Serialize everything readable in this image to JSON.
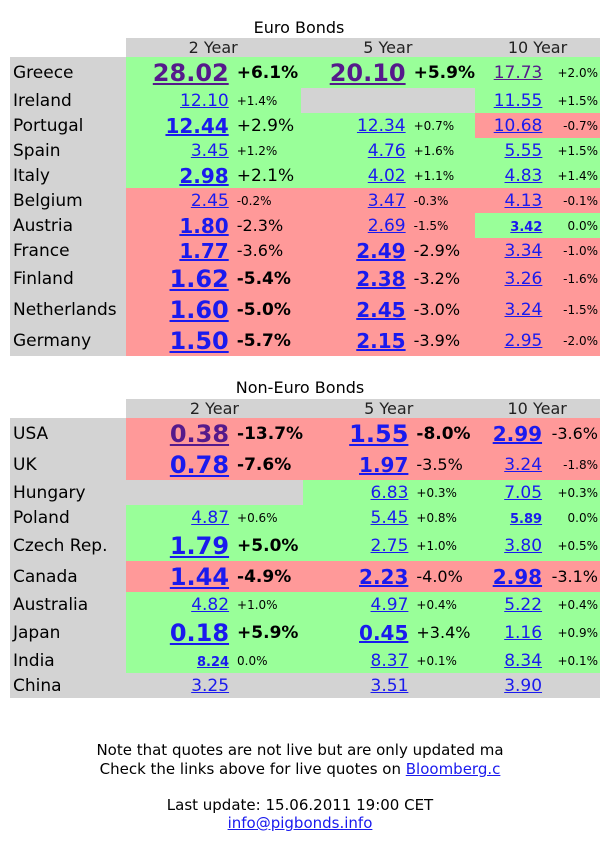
{
  "euro": {
    "title": "Euro Bonds",
    "headers": [
      "2 Year",
      "5 Year",
      "10 Year"
    ],
    "rows": [
      {
        "name": "Greece",
        "h": 31,
        "y2": {
          "v": "28.02",
          "p": "+6.1%",
          "c": "g",
          "vs": "xl",
          "ps": "l",
          "vis": true,
          "pb": true
        },
        "y5": {
          "v": "20.10",
          "p": "+5.9%",
          "c": "g",
          "vs": "xl",
          "ps": "l",
          "vis": true,
          "pb": true
        },
        "y10": {
          "v": "17.73",
          "p": "+2.0%",
          "c": "g",
          "vs": "m",
          "ps": "s",
          "vis": true
        }
      },
      {
        "name": "Ireland",
        "h": 25,
        "y2": {
          "v": "12.10",
          "p": "+1.4%",
          "c": "g",
          "vs": "m",
          "ps": "s"
        },
        "y5": {
          "v": "",
          "p": "",
          "c": "n",
          "vs": "m",
          "ps": "s"
        },
        "y10": {
          "v": "11.55",
          "p": "+1.5%",
          "c": "g",
          "vs": "m",
          "ps": "s"
        }
      },
      {
        "name": "Portugal",
        "h": 25,
        "y2": {
          "v": "12.44",
          "p": "+2.9%",
          "c": "g",
          "vs": "l",
          "ps": "l"
        },
        "y5": {
          "v": "12.34",
          "p": "+0.7%",
          "c": "g",
          "vs": "m",
          "ps": "s"
        },
        "y10": {
          "v": "10.68",
          "p": "-0.7%",
          "c": "r",
          "vs": "m",
          "ps": "s"
        }
      },
      {
        "name": "Spain",
        "h": 25,
        "y2": {
          "v": "3.45",
          "p": "+1.2%",
          "c": "g",
          "vs": "m",
          "ps": "s"
        },
        "y5": {
          "v": "4.76",
          "p": "+1.6%",
          "c": "g",
          "vs": "m",
          "ps": "s"
        },
        "y10": {
          "v": "5.55",
          "p": "+1.5%",
          "c": "g",
          "vs": "m",
          "ps": "s"
        }
      },
      {
        "name": "Italy",
        "h": 25,
        "y2": {
          "v": "2.98",
          "p": "+2.1%",
          "c": "g",
          "vs": "l",
          "ps": "l"
        },
        "y5": {
          "v": "4.02",
          "p": "+1.1%",
          "c": "g",
          "vs": "m",
          "ps": "s"
        },
        "y10": {
          "v": "4.83",
          "p": "+1.4%",
          "c": "g",
          "vs": "m",
          "ps": "s"
        }
      },
      {
        "name": "Belgium",
        "h": 25,
        "y2": {
          "v": "2.45",
          "p": "-0.2%",
          "c": "r",
          "vs": "m",
          "ps": "s"
        },
        "y5": {
          "v": "3.47",
          "p": "-0.3%",
          "c": "r",
          "vs": "m",
          "ps": "s"
        },
        "y10": {
          "v": "4.13",
          "p": "-0.1%",
          "c": "r",
          "vs": "m",
          "ps": "s"
        }
      },
      {
        "name": "Austria",
        "h": 25,
        "y2": {
          "v": "1.80",
          "p": "-2.3%",
          "c": "r",
          "vs": "l",
          "ps": "m"
        },
        "y5": {
          "v": "2.69",
          "p": "-1.5%",
          "c": "r",
          "vs": "m",
          "ps": "s"
        },
        "y10": {
          "v": "3.42",
          "p": "0.0%",
          "c": "g",
          "vs": "s",
          "ps": "s",
          "vb": true
        }
      },
      {
        "name": "France",
        "h": 25,
        "y2": {
          "v": "1.77",
          "p": "-3.6%",
          "c": "r",
          "vs": "l",
          "ps": "m"
        },
        "y5": {
          "v": "2.49",
          "p": "-2.9%",
          "c": "r",
          "vs": "l",
          "ps": "m"
        },
        "y10": {
          "v": "3.34",
          "p": "-1.0%",
          "c": "r",
          "vs": "m",
          "ps": "s"
        }
      },
      {
        "name": "Finland",
        "h": 31,
        "y2": {
          "v": "1.62",
          "p": "-5.4%",
          "c": "r",
          "vs": "xl",
          "ps": "l",
          "pb": true
        },
        "y5": {
          "v": "2.38",
          "p": "-3.2%",
          "c": "r",
          "vs": "l",
          "ps": "m"
        },
        "y10": {
          "v": "3.26",
          "p": "-1.6%",
          "c": "r",
          "vs": "m",
          "ps": "s"
        }
      },
      {
        "name": "Netherlands",
        "h": 31,
        "y2": {
          "v": "1.60",
          "p": "-5.0%",
          "c": "r",
          "vs": "xl",
          "ps": "l",
          "pb": true
        },
        "y5": {
          "v": "2.45",
          "p": "-3.0%",
          "c": "r",
          "vs": "l",
          "ps": "m"
        },
        "y10": {
          "v": "3.24",
          "p": "-1.5%",
          "c": "r",
          "vs": "m",
          "ps": "s"
        }
      },
      {
        "name": "Germany",
        "h": 31,
        "y2": {
          "v": "1.50",
          "p": "-5.7%",
          "c": "r",
          "vs": "xl",
          "ps": "l",
          "pb": true
        },
        "y5": {
          "v": "2.15",
          "p": "-3.9%",
          "c": "r",
          "vs": "l",
          "ps": "m"
        },
        "y10": {
          "v": "2.95",
          "p": "-2.0%",
          "c": "r",
          "vs": "m",
          "ps": "s"
        }
      }
    ]
  },
  "nonEuro": {
    "title": "Non-Euro Bonds",
    "headers": [
      "2 Year",
      "5 Year",
      "10 Year"
    ],
    "rows": [
      {
        "name": "USA",
        "h": 31,
        "y2": {
          "v": "0.38",
          "p": "-13.7%",
          "c": "r",
          "vs": "xl",
          "ps": "l",
          "vis": true,
          "pb": true
        },
        "y5": {
          "v": "1.55",
          "p": "-8.0%",
          "c": "r",
          "vs": "xl",
          "ps": "l",
          "pb": true
        },
        "y10": {
          "v": "2.99",
          "p": "-3.6%",
          "c": "r",
          "vs": "l",
          "ps": "m"
        }
      },
      {
        "name": "UK",
        "h": 31,
        "y2": {
          "v": "0.78",
          "p": "-7.6%",
          "c": "r",
          "vs": "xl",
          "ps": "l",
          "pb": true
        },
        "y5": {
          "v": "1.97",
          "p": "-3.5%",
          "c": "r",
          "vs": "l",
          "ps": "m"
        },
        "y10": {
          "v": "3.24",
          "p": "-1.8%",
          "c": "r",
          "vs": "m",
          "ps": "s"
        }
      },
      {
        "name": "Hungary",
        "h": 25,
        "y2": {
          "v": "",
          "p": "",
          "c": "n",
          "vs": "m",
          "ps": "s"
        },
        "y5": {
          "v": "6.83",
          "p": "+0.3%",
          "c": "g",
          "vs": "m",
          "ps": "s"
        },
        "y10": {
          "v": "7.05",
          "p": "+0.3%",
          "c": "g",
          "vs": "m",
          "ps": "s"
        }
      },
      {
        "name": "Poland",
        "h": 25,
        "y2": {
          "v": "4.87",
          "p": "+0.6%",
          "c": "g",
          "vs": "m",
          "ps": "s"
        },
        "y5": {
          "v": "5.45",
          "p": "+0.8%",
          "c": "g",
          "vs": "m",
          "ps": "s"
        },
        "y10": {
          "v": "5.89",
          "p": "0.0%",
          "c": "g",
          "vs": "s",
          "ps": "s",
          "vb": true
        }
      },
      {
        "name": "Czech Rep.",
        "h": 31,
        "y2": {
          "v": "1.79",
          "p": "+5.0%",
          "c": "g",
          "vs": "xl",
          "ps": "l",
          "pb": true
        },
        "y5": {
          "v": "2.75",
          "p": "+1.0%",
          "c": "g",
          "vs": "m",
          "ps": "s"
        },
        "y10": {
          "v": "3.80",
          "p": "+0.5%",
          "c": "g",
          "vs": "m",
          "ps": "s"
        }
      },
      {
        "name": "Canada",
        "h": 31,
        "y2": {
          "v": "1.44",
          "p": "-4.9%",
          "c": "r",
          "vs": "xl",
          "ps": "l",
          "pb": true
        },
        "y5": {
          "v": "2.23",
          "p": "-4.0%",
          "c": "r",
          "vs": "l",
          "ps": "m"
        },
        "y10": {
          "v": "2.98",
          "p": "-3.1%",
          "c": "r",
          "vs": "l",
          "ps": "m"
        }
      },
      {
        "name": "Australia",
        "h": 25,
        "y2": {
          "v": "4.82",
          "p": "+1.0%",
          "c": "g",
          "vs": "m",
          "ps": "s"
        },
        "y5": {
          "v": "4.97",
          "p": "+0.4%",
          "c": "g",
          "vs": "m",
          "ps": "s"
        },
        "y10": {
          "v": "5.22",
          "p": "+0.4%",
          "c": "g",
          "vs": "m",
          "ps": "s"
        }
      },
      {
        "name": "Japan",
        "h": 31,
        "y2": {
          "v": "0.18",
          "p": "+5.9%",
          "c": "g",
          "vs": "xl",
          "ps": "l",
          "pb": true
        },
        "y5": {
          "v": "0.45",
          "p": "+3.4%",
          "c": "g",
          "vs": "l",
          "ps": "m"
        },
        "y10": {
          "v": "1.16",
          "p": "+0.9%",
          "c": "g",
          "vs": "m",
          "ps": "s"
        }
      },
      {
        "name": "India",
        "h": 25,
        "y2": {
          "v": "8.24",
          "p": "0.0%",
          "c": "g",
          "vs": "s",
          "ps": "s",
          "vb": true
        },
        "y5": {
          "v": "8.37",
          "p": "+0.1%",
          "c": "g",
          "vs": "m",
          "ps": "s"
        },
        "y10": {
          "v": "8.34",
          "p": "+0.1%",
          "c": "g",
          "vs": "m",
          "ps": "s"
        }
      },
      {
        "name": "China",
        "h": 25,
        "y2": {
          "v": "3.25",
          "p": "",
          "c": "n",
          "vs": "m",
          "ps": "s"
        },
        "y5": {
          "v": "3.51",
          "p": "",
          "c": "n",
          "vs": "m",
          "ps": "s"
        },
        "y10": {
          "v": "3.90",
          "p": "",
          "c": "n",
          "vs": "m",
          "ps": "s"
        }
      }
    ]
  },
  "footer": {
    "note_line1": "Note that quotes are not live but are only updated ma",
    "note_line2_prefix": "Check the links above for live quotes on ",
    "note_line2_link": "Bloomberg.c",
    "last_update": "Last update: 15.06.2011 19:00 CET",
    "email": "info@pigbonds.info"
  },
  "colors": {
    "green": "#99ff99",
    "red": "#ff9999",
    "gray": "#d3d3d3",
    "link": "#1a1aee",
    "visited": "#551a8b"
  }
}
